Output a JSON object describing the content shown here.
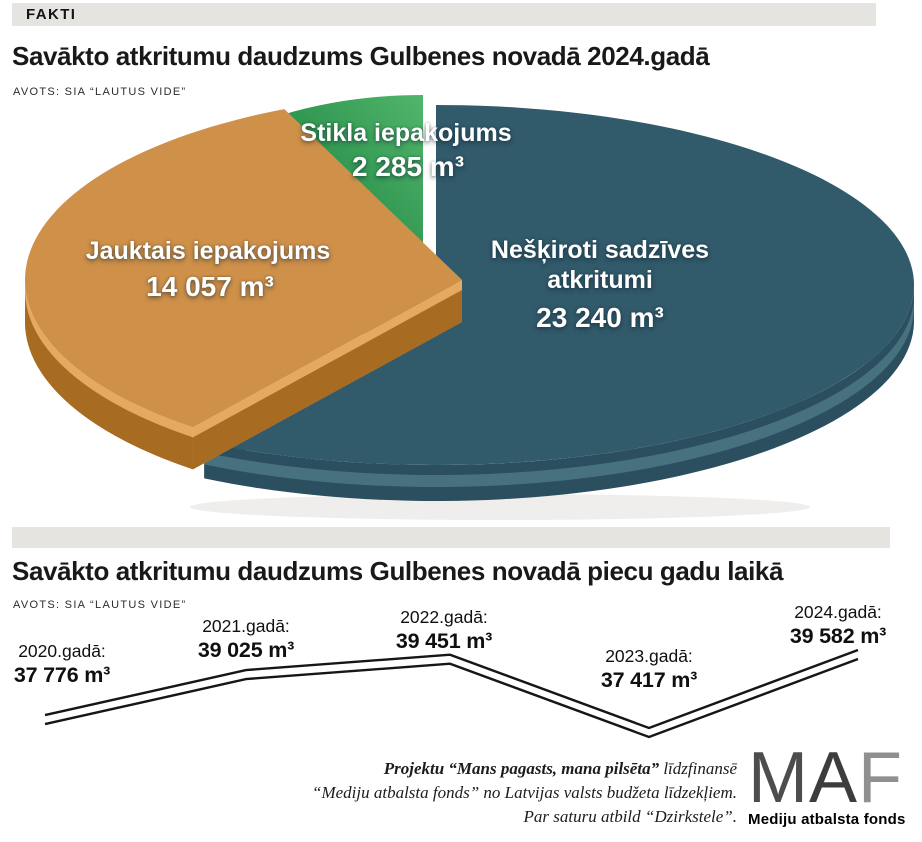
{
  "page": {
    "tag_label": "FAKTI"
  },
  "section1": {
    "title": "Savākto atkritumu daudzums Gulbenes novadā 2024.gadā",
    "source": "AVOTS: SIA “LAUTUS VIDE”"
  },
  "section2": {
    "title": "Savākto atkritumu daudzums Gulbenes novadā piecu gadu laikā",
    "source": "AVOTS: SIA “LAUTUS VIDE”"
  },
  "chart_data": [
    {
      "type": "pie",
      "title": "Savākto atkritumu daudzums Gulbenes novadā 2024.gadā",
      "unit": "m³",
      "style": "3d-exploded",
      "slices": [
        {
          "label": "Nešķiroti sadzīves atkritumi",
          "label_lines": [
            "Nešķiroti sadzīves",
            "atkritumi"
          ],
          "value": 23240,
          "display": "23 240 m³",
          "color": "#315a6b",
          "side_color": "#2b4f5e",
          "edge_color": "#47717f"
        },
        {
          "label": "Jauktais iepakojums",
          "label_lines": [
            "Jauktais iepakojums"
          ],
          "value": 14057,
          "display": "14 057 m³",
          "color": "#cf9049",
          "side_color": "#a86b22",
          "edge_color": "#e6a960"
        },
        {
          "label": "Stikla iepakojums",
          "label_lines": [
            "Stikla iepakojums"
          ],
          "value": 2285,
          "display": "2 285 m³",
          "color": "#2f9e50",
          "color_dark": "#117a37",
          "color_light": "#52b56c",
          "side_color": "#0d6b30",
          "edge_color": "#45aa60"
        }
      ]
    },
    {
      "type": "line",
      "title": "Savākto atkritumu daudzums Gulbenes novadā piecu gadu laikā",
      "style": "double-line",
      "line_color": "#161616",
      "points": [
        {
          "year_label": "2020.gadā:",
          "value": 37776,
          "display": "37 776 m³"
        },
        {
          "year_label": "2021.gadā:",
          "value": 39025,
          "display": "39 025 m³"
        },
        {
          "year_label": "2022.gadā:",
          "value": 39451,
          "display": "39 451 m³"
        },
        {
          "year_label": "2023.gadā:",
          "value": 37417,
          "display": "37 417 m³"
        },
        {
          "year_label": "2024.gadā:",
          "value": 39582,
          "display": "39 582 m³"
        }
      ]
    }
  ],
  "footer": {
    "credit_bold": "Projektu “Mans pagasts, mana pilsēta”",
    "credit_rest": " līdzfinansē",
    "credit_line2": "“Mediju atbalsta fonds” no Latvijas valsts budžeta līdzekļiem.",
    "credit_line3": "Par saturu atbild “Dzirkstele”.",
    "logo_letters": [
      "M",
      "A",
      "F"
    ],
    "logo_letter_colors": [
      "#4d4d4d",
      "#3d3d3d",
      "#909090"
    ],
    "logo_caption": "Mediju atbalsta fonds"
  }
}
